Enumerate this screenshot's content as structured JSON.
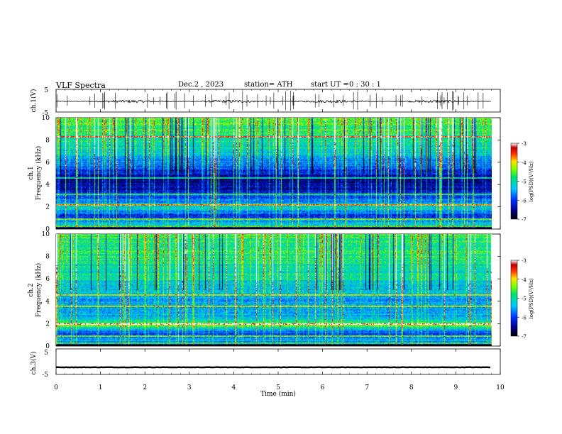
{
  "header": {
    "title": "VLF  Spectra",
    "date": "Dec.2  , 2023",
    "station": "station= ATH",
    "start_ut_label": "start  UT  =",
    "start_ut_value": "0  : 30 : 1"
  },
  "chart_data": [
    {
      "type": "line",
      "panel": "ch1-waveform",
      "ylabel": "ch.1(V)",
      "yticks": [
        "5",
        "-5"
      ],
      "ylim": [
        -5,
        5
      ],
      "xlim": [
        0,
        10
      ],
      "baseline_v": -0.3,
      "noise_amplitude_v": 0.6,
      "spikes_approx": 60
    },
    {
      "type": "heatmap",
      "panel": "ch1-spectrogram",
      "ylabel": "ch.1\nFrequency (kHz)",
      "ylim": [
        0,
        10
      ],
      "yticks": [
        "0",
        "2",
        "4",
        "6",
        "8",
        "10"
      ],
      "xlim": [
        0,
        9.8
      ],
      "colorbar": {
        "label": "log(PSD)(V²/Hz)",
        "ticks": [
          "-3",
          "-4",
          "-5",
          "-6",
          "-7"
        ],
        "range": [
          -7,
          -3
        ]
      },
      "band_profile_kHz_logpsd": [
        [
          0,
          -7
        ],
        [
          0.5,
          -5.2
        ],
        [
          1.2,
          -6.2
        ],
        [
          2.0,
          -5.0
        ],
        [
          2.5,
          -5.6
        ],
        [
          3.5,
          -6.4
        ],
        [
          4.5,
          -6.6
        ],
        [
          5.5,
          -5.9
        ],
        [
          6.5,
          -5.4
        ],
        [
          8.0,
          -4.9
        ],
        [
          10,
          -4.6
        ]
      ],
      "strong_lines_kHz": [
        0.3,
        0.9,
        2.2,
        3.15,
        4.6,
        8.3
      ]
    },
    {
      "type": "heatmap",
      "panel": "ch2-spectrogram",
      "ylabel": "ch.2\nFrequency (kHz)",
      "ylim": [
        0,
        10
      ],
      "yticks": [
        "0",
        "2",
        "4",
        "6",
        "8",
        "10"
      ],
      "xlim": [
        0,
        9.8
      ],
      "colorbar": {
        "label": "log(PSD)(V²/Hz)",
        "ticks": [
          "-3",
          "-4",
          "-5",
          "-6",
          "-7"
        ],
        "range": [
          -7,
          -3
        ]
      },
      "band_profile_kHz_logpsd": [
        [
          0,
          -7
        ],
        [
          0.5,
          -5.4
        ],
        [
          1.2,
          -5.9
        ],
        [
          2.0,
          -4.4
        ],
        [
          2.6,
          -5.5
        ],
        [
          3.6,
          -5.6
        ],
        [
          4.6,
          -5.4
        ],
        [
          6.0,
          -5.1
        ],
        [
          8.0,
          -4.9
        ],
        [
          10,
          -4.7
        ]
      ],
      "strong_lines_kHz": [
        0.3,
        0.9,
        2.0,
        3.6,
        4.6
      ]
    },
    {
      "type": "line",
      "panel": "ch3-waveform",
      "ylabel": "ch.3(V)",
      "yticks": [
        "5",
        "-5"
      ],
      "ylim": [
        -5,
        5
      ],
      "xlim": [
        0,
        10
      ],
      "baseline_v": -2.2,
      "noise_amplitude_v": 0.15
    }
  ],
  "xaxis": {
    "label": "Time  (min)",
    "ticks": [
      "0",
      "1",
      "2",
      "3",
      "4",
      "5",
      "6",
      "7",
      "8",
      "9",
      "10"
    ]
  }
}
